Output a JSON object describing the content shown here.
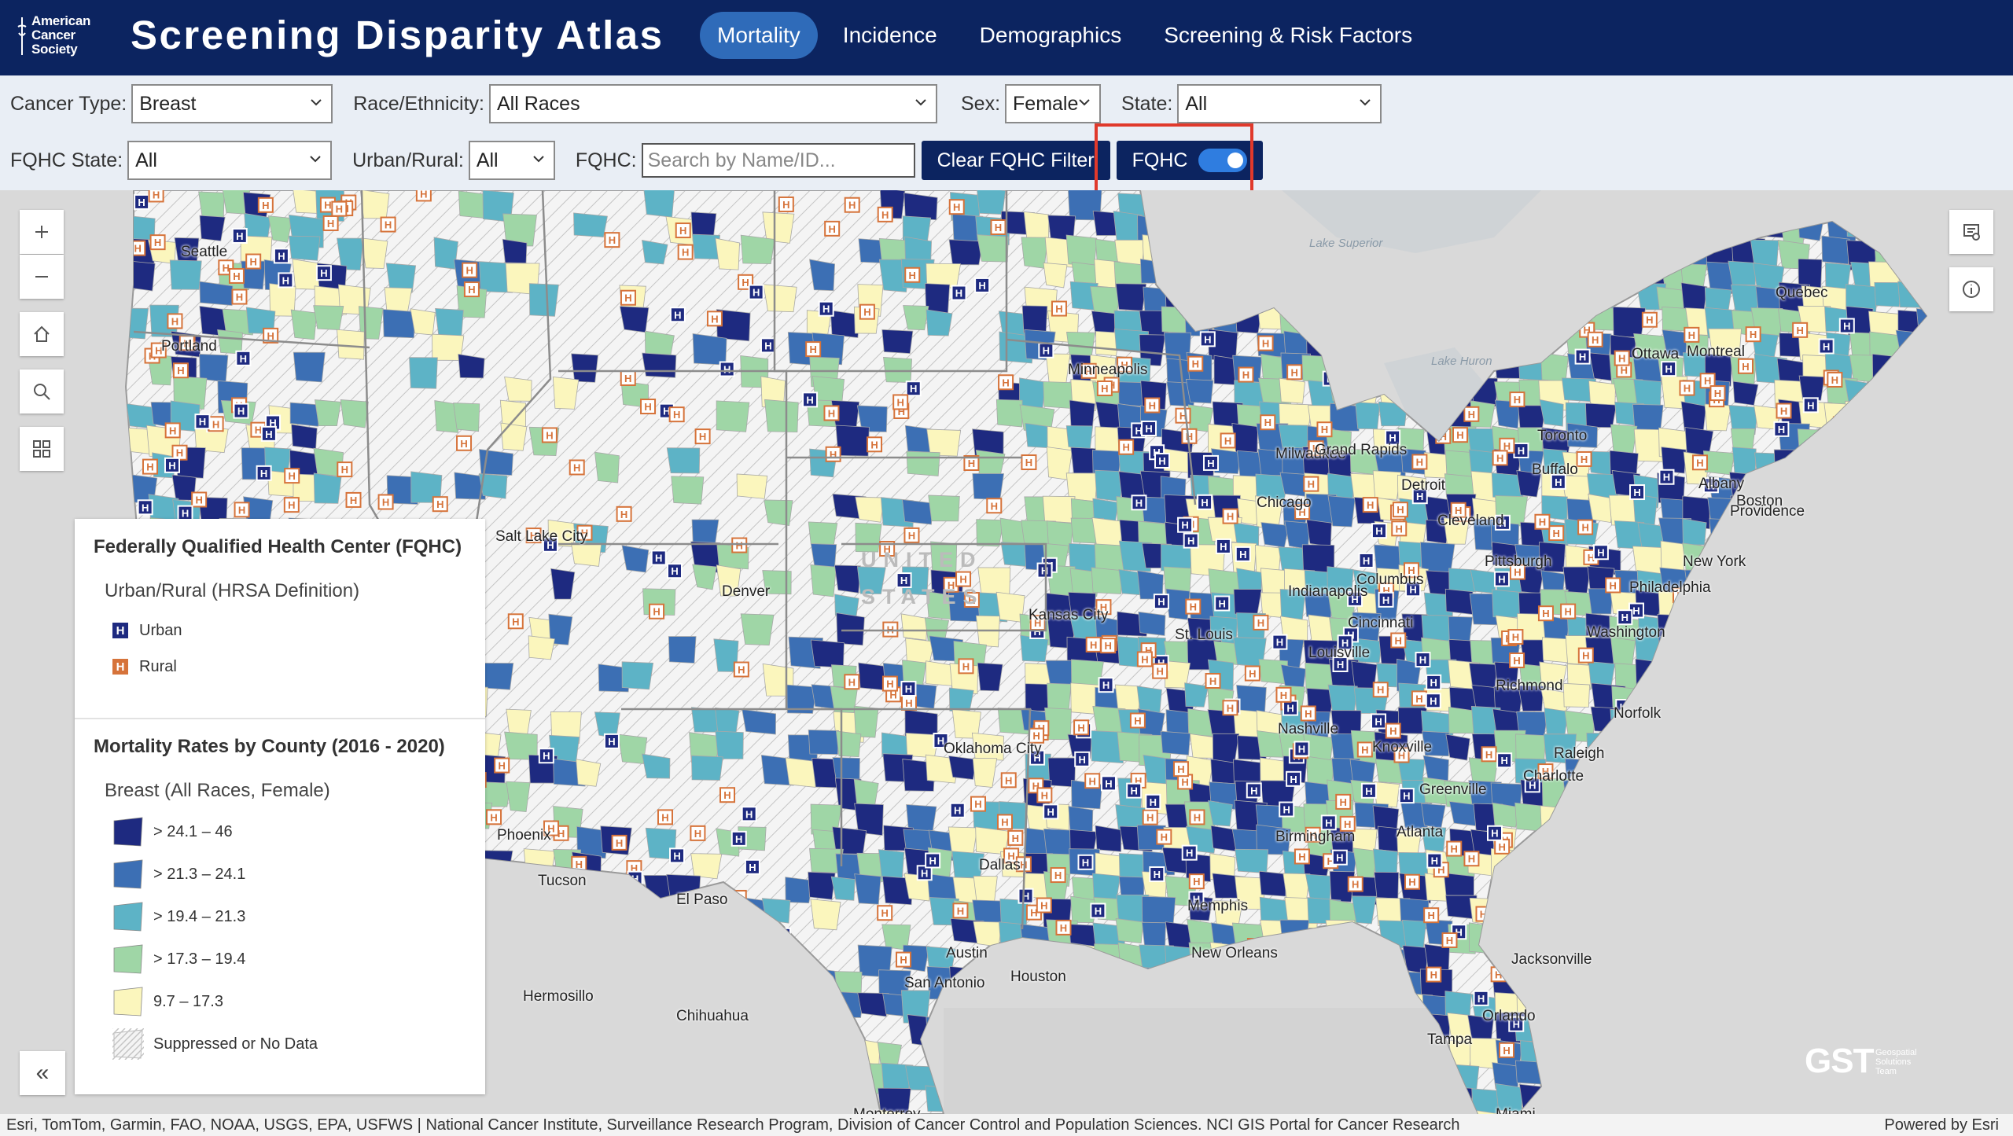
{
  "header": {
    "logo_text": [
      "American",
      "Cancer",
      "Society"
    ],
    "title": "Screening Disparity Atlas",
    "tabs": [
      {
        "label": "Mortality",
        "active": true
      },
      {
        "label": "Incidence",
        "active": false
      },
      {
        "label": "Demographics",
        "active": false
      },
      {
        "label": "Screening & Risk Factors",
        "active": false
      }
    ]
  },
  "filters": {
    "cancer_type": {
      "label": "Cancer Type:",
      "value": "Breast"
    },
    "race": {
      "label": "Race/Ethnicity:",
      "value": "All Races"
    },
    "sex": {
      "label": "Sex:",
      "value": "Female"
    },
    "state": {
      "label": "State:",
      "value": "All"
    },
    "fqhc_state": {
      "label": "FQHC State:",
      "value": "All"
    },
    "urban_rural": {
      "label": "Urban/Rural:",
      "value": "All"
    },
    "fqhc_search": {
      "label": "FQHC:",
      "value": "",
      "placeholder": "Search by Name/ID..."
    },
    "clear_button": "Clear FQHC Filter",
    "fqhc_toggle": {
      "label": "FQHC",
      "on": true
    }
  },
  "map": {
    "water_labels": [
      "Lake Superior",
      "Lake Huron"
    ],
    "country_label": [
      "UNITED",
      "STATES"
    ],
    "places": [
      "Seattle",
      "Portland",
      "Salt Lake City",
      "Denver",
      "Phoenix",
      "Tucson",
      "El Paso",
      "Hermosillo",
      "Chihuahua",
      "Monterrey",
      "Minneapolis",
      "Milwaukee",
      "Grand Rapids",
      "Detroit",
      "Chicago",
      "Kansas City",
      "St. Louis",
      "Indianapolis",
      "Columbus",
      "Cleveland",
      "Pittsburgh",
      "Cincinnati",
      "Louisville",
      "Oklahoma City",
      "Dallas",
      "Austin",
      "San Antonio",
      "Houston",
      "Memphis",
      "Nashville",
      "Knoxville",
      "Birmingham",
      "Atlanta",
      "New Orleans",
      "Jacksonville",
      "Orlando",
      "Tampa",
      "Miami",
      "Charlotte",
      "Greenville",
      "Raleigh",
      "Richmond",
      "Norfolk",
      "Washington",
      "Philadelphia",
      "New York",
      "Albany",
      "Boston",
      "Providence",
      "Buffalo",
      "Toronto",
      "Ottawa",
      "Montreal",
      "Quebec"
    ],
    "colors": {
      "c1": "#1e2a80",
      "c2": "#3c6fb4",
      "c3": "#5db3c6",
      "c4": "#9fd6a6",
      "c5": "#fbf6bd",
      "urban": "#1e2a80",
      "rural": "#d6733a"
    }
  },
  "legend": {
    "fqhc_title": "Federally Qualified Health Center (FQHC)",
    "fqhc_subtitle": "Urban/Rural (HRSA Definition)",
    "fqhc_items": [
      {
        "label": "Urban",
        "color": "#1e2a80"
      },
      {
        "label": "Rural",
        "color": "#d6733a"
      }
    ],
    "rates_title": "Mortality Rates by County (2016 - 2020)",
    "rates_subtitle": "Breast (All Races, Female)",
    "rate_items": [
      {
        "label": "> 24.1 – 46",
        "color": "#1e2a80"
      },
      {
        "label": "> 21.3 – 24.1",
        "color": "#3c6fb4"
      },
      {
        "label": "> 19.4 – 21.3",
        "color": "#5db3c6"
      },
      {
        "label": "> 17.3 – 19.4",
        "color": "#9fd6a6"
      },
      {
        "label": "9.7 – 17.3",
        "color": "#fbf6bd"
      },
      {
        "label": "Suppressed or No Data",
        "color": "hatch"
      }
    ]
  },
  "branding": {
    "gst": "GST",
    "gst_sub": [
      "Geospatial",
      "Solutions",
      "Team"
    ]
  },
  "attribution": {
    "left": "Esri, TomTom, Garmin, FAO, NOAA, USGS, EPA, USFWS | National Cancer Institute, Surveillance Research Program, Division of Cancer Control and Population Sciences. NCI GIS Portal for Cancer Research",
    "right": "Powered by Esri"
  }
}
